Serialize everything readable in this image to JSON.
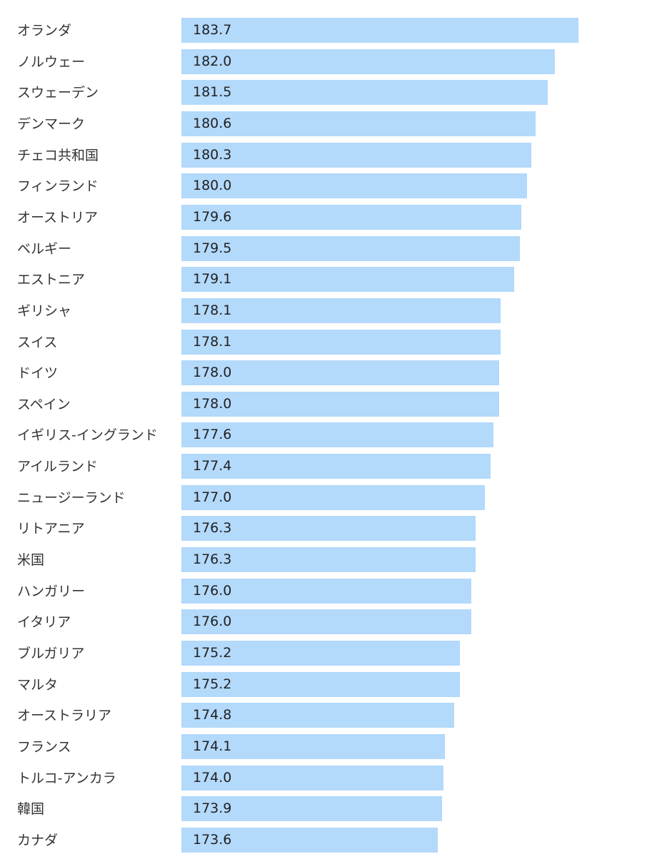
{
  "chart_data": {
    "type": "bar",
    "orientation": "horizontal",
    "title": "",
    "xlabel": "",
    "ylabel": "",
    "bar_color": "#b3d9fb",
    "grid": false,
    "categories": [
      "オランダ",
      "ノルウェー",
      "スウェーデン",
      "デンマーク",
      "チェコ共和国",
      "フィンランド",
      "オーストリア",
      "ベルギー",
      "エストニア",
      "ギリシャ",
      "スイス",
      "ドイツ",
      "スペイン",
      "イギリス-イングランド",
      "アイルランド",
      "ニュージーランド",
      "リトアニア",
      "米国",
      "ハンガリー",
      "イタリア",
      "ブルガリア",
      "マルタ",
      "オーストラリア",
      "フランス",
      "トルコ-アンカラ",
      "韓国",
      "カナダ"
    ],
    "values": [
      183.7,
      182.0,
      181.5,
      180.6,
      180.3,
      180.0,
      179.6,
      179.5,
      179.1,
      178.1,
      178.1,
      178.0,
      178.0,
      177.6,
      177.4,
      177.0,
      176.3,
      176.3,
      176.0,
      176.0,
      175.2,
      175.2,
      174.8,
      174.1,
      174.0,
      173.9,
      173.6
    ],
    "value_labels": [
      "183.7",
      "182.0",
      "181.5",
      "180.6",
      "180.3",
      "180.0",
      "179.6",
      "179.5",
      "179.1",
      "178.1",
      "178.1",
      "178.0",
      "178.0",
      "177.6",
      "177.4",
      "177.0",
      "176.3",
      "176.3",
      "176.0",
      "176.0",
      "175.2",
      "175.2",
      "174.8",
      "174.1",
      "174.0",
      "173.9",
      "173.6"
    ]
  }
}
